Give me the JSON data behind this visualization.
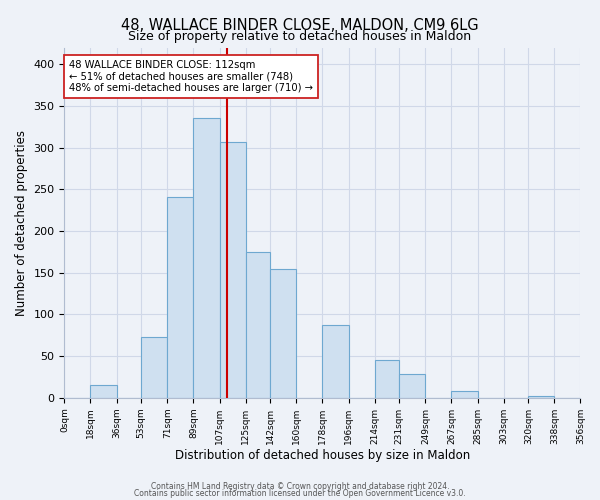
{
  "title": "48, WALLACE BINDER CLOSE, MALDON, CM9 6LG",
  "subtitle": "Size of property relative to detached houses in Maldon",
  "xlabel": "Distribution of detached houses by size in Maldon",
  "ylabel": "Number of detached properties",
  "bar_left_edges": [
    0,
    18,
    36,
    53,
    71,
    89,
    107,
    125,
    142,
    160,
    178,
    196,
    214,
    231,
    249,
    267,
    285,
    303,
    320,
    338
  ],
  "bar_widths": [
    18,
    18,
    17,
    18,
    18,
    18,
    18,
    17,
    18,
    18,
    18,
    18,
    17,
    18,
    18,
    18,
    18,
    17,
    18,
    18
  ],
  "bar_heights": [
    0,
    15,
    0,
    73,
    241,
    335,
    307,
    175,
    155,
    0,
    87,
    0,
    45,
    28,
    0,
    8,
    0,
    0,
    2,
    0
  ],
  "tick_labels": [
    "0sqm",
    "18sqm",
    "36sqm",
    "53sqm",
    "71sqm",
    "89sqm",
    "107sqm",
    "125sqm",
    "142sqm",
    "160sqm",
    "178sqm",
    "196sqm",
    "214sqm",
    "231sqm",
    "249sqm",
    "267sqm",
    "285sqm",
    "303sqm",
    "320sqm",
    "338sqm",
    "356sqm"
  ],
  "bar_color": "#cfe0f0",
  "bar_edge_color": "#6ea8d0",
  "property_line_x": 112,
  "property_line_color": "#cc0000",
  "ylim": [
    0,
    420
  ],
  "yticks": [
    0,
    50,
    100,
    150,
    200,
    250,
    300,
    350,
    400
  ],
  "annotation_line1": "48 WALLACE BINDER CLOSE: 112sqm",
  "annotation_line2": "← 51% of detached houses are smaller (748)",
  "annotation_line3": "48% of semi-detached houses are larger (710) →",
  "footnote1": "Contains HM Land Registry data © Crown copyright and database right 2024.",
  "footnote2": "Contains public sector information licensed under the Open Government Licence v3.0.",
  "bg_color": "#eef2f8",
  "grid_color": "#d0d8e8",
  "spine_color": "#b0bcd0"
}
